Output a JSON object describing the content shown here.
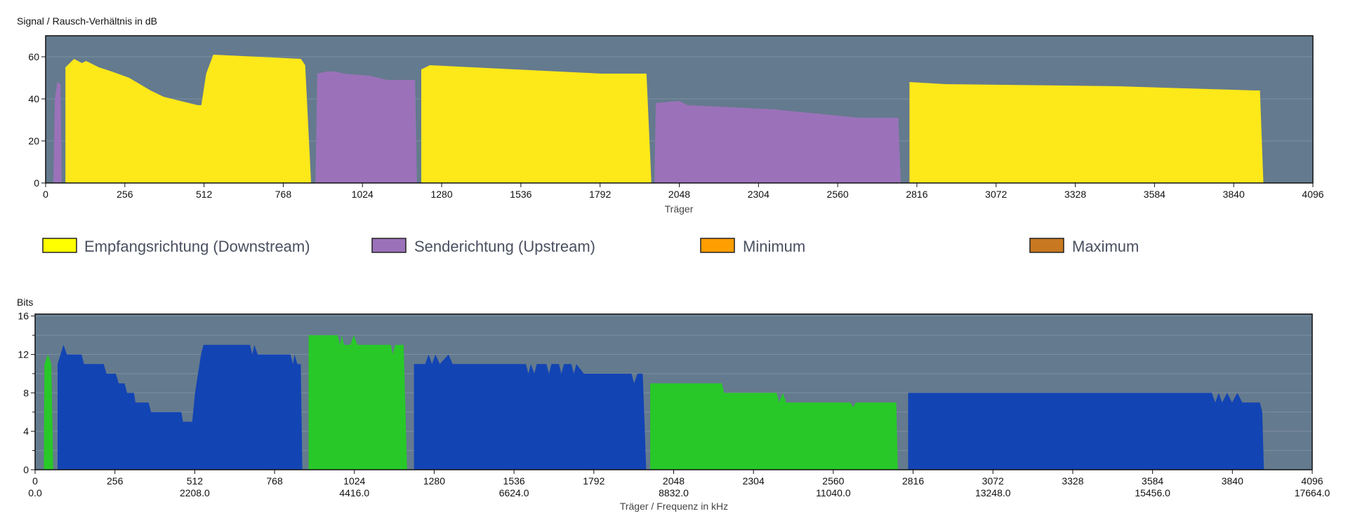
{
  "colors": {
    "plot_background": "#647a8e",
    "gridline": "#7d90a2",
    "downstream_snr": "#fde81a",
    "upstream_snr": "#9b72b9",
    "downstream_bits": "#1244b4",
    "upstream_bits": "#28c828",
    "minimum": "#ff9e00",
    "maximum": "#c87820"
  },
  "legend": {
    "placement": "between charts",
    "items": [
      {
        "label": "Empfangsrichtung (Downstream)",
        "color": "#ffff00"
      },
      {
        "label": "Senderichtung (Upstream)",
        "color": "#9b72b9"
      },
      {
        "label": "Minimum",
        "color": "#ff9e00"
      },
      {
        "label": "Maximum",
        "color": "#c87820"
      }
    ]
  },
  "chart_data": [
    {
      "type": "area",
      "title": "Signal / Rausch-Verhältnis in dB",
      "xlabel": "Träger",
      "ylabel": "",
      "xlim": [
        0,
        4096
      ],
      "ylim": [
        0,
        70
      ],
      "xticks": [
        0,
        256,
        512,
        768,
        1024,
        1280,
        1536,
        1792,
        2048,
        2304,
        2560,
        2816,
        3072,
        3328,
        3584,
        3840,
        4096
      ],
      "yticks": [
        0,
        20,
        40,
        60
      ],
      "grid": true,
      "series": [
        {
          "direction": "downstream",
          "segments": [
            [
              [
                64,
                0
              ],
              [
                64,
                55
              ],
              [
                92,
                59
              ],
              [
                117,
                57
              ],
              [
                131,
                58
              ],
              [
                172,
                55
              ],
              [
                214,
                53
              ],
              [
                270,
                50
              ],
              [
                339,
                44
              ],
              [
                381,
                41
              ],
              [
                436,
                39
              ],
              [
                492,
                37
              ],
              [
                503,
                37
              ],
              [
                519,
                52
              ],
              [
                542,
                61
              ],
              [
                686,
                60
              ],
              [
                825,
                59
              ],
              [
                839,
                56
              ],
              [
                858,
                0
              ]
            ],
            [
              [
                1214,
                0
              ],
              [
                1214,
                54
              ],
              [
                1242,
                56
              ],
              [
                1519,
                54
              ],
              [
                1797,
                52
              ],
              [
                1942,
                52
              ],
              [
                1958,
                0
              ]
            ],
            [
              [
                2792,
                0
              ],
              [
                2792,
                48
              ],
              [
                2908,
                47
              ],
              [
                3464,
                46
              ],
              [
                3908,
                44
              ],
              [
                3925,
                44
              ],
              [
                3936,
                0
              ]
            ]
          ]
        },
        {
          "direction": "upstream",
          "segments": [
            [
              [
                25,
                0
              ],
              [
                30,
                40
              ],
              [
                38,
                48
              ],
              [
                48,
                47
              ],
              [
                52,
                0
              ]
            ],
            [
              [
                872,
                0
              ],
              [
                878,
                52
              ],
              [
                908,
                53
              ],
              [
                936,
                53
              ],
              [
                964,
                52
              ],
              [
                1047,
                51
              ],
              [
                1103,
                49
              ],
              [
                1194,
                49
              ],
              [
                1200,
                0
              ]
            ],
            [
              [
                1968,
                0
              ],
              [
                1972,
                38
              ],
              [
                2047,
                39
              ],
              [
                2075,
                37
              ],
              [
                2353,
                35
              ],
              [
                2492,
                33
              ],
              [
                2631,
                31
              ],
              [
                2756,
                31
              ],
              [
                2764,
                0
              ]
            ]
          ]
        }
      ]
    },
    {
      "type": "area",
      "title": "Bits",
      "xlabel": "Träger / Frequenz in kHz",
      "ylabel": "",
      "xlim": [
        0,
        4096
      ],
      "ylim": [
        0,
        16.2
      ],
      "xticks": [
        0,
        256,
        512,
        768,
        1024,
        1280,
        1536,
        1792,
        2048,
        2304,
        2560,
        2816,
        3072,
        3328,
        3584,
        3840,
        4096
      ],
      "xticks_secondary": [
        "0.0",
        "",
        "2208.0",
        "",
        "4416.0",
        "",
        "6624.0",
        "",
        "8832.0",
        "",
        "11040.0",
        "",
        "13248.0",
        "",
        "15456.0",
        "",
        "17664.0"
      ],
      "yticks": [
        0,
        4,
        8,
        12,
        16
      ],
      "yticks_minor": [
        2,
        6,
        10,
        14
      ],
      "grid": true,
      "series": [
        {
          "direction": "downstream",
          "segments": [
            [
              [
                72,
                0
              ],
              [
                72,
                11
              ],
              [
                91,
                13
              ],
              [
                102,
                12
              ],
              [
                149,
                12
              ],
              [
                157,
                11
              ],
              [
                220,
                11
              ],
              [
                229,
                10
              ],
              [
                259,
                10
              ],
              [
                268,
                9
              ],
              [
                287,
                9
              ],
              [
                295,
                8
              ],
              [
                317,
                8
              ],
              [
                322,
                7
              ],
              [
                364,
                7
              ],
              [
                372,
                6
              ],
              [
                469,
                6
              ],
              [
                474,
                5
              ],
              [
                504,
                5
              ],
              [
                513,
                8
              ],
              [
                532,
                12
              ],
              [
                540,
                13
              ],
              [
                689,
                13
              ],
              [
                697,
                12
              ],
              [
                703,
                13
              ],
              [
                714,
                12
              ],
              [
                819,
                12
              ],
              [
                827,
                11
              ],
              [
                832,
                12
              ],
              [
                841,
                11
              ],
              [
                852,
                11
              ],
              [
                857,
                0
              ]
            ],
            [
              [
                1215,
                0
              ],
              [
                1215,
                11
              ],
              [
                1251,
                11
              ],
              [
                1262,
                12
              ],
              [
                1273,
                11
              ],
              [
                1284,
                12
              ],
              [
                1298,
                11
              ],
              [
                1326,
                12
              ],
              [
                1339,
                11
              ],
              [
                1574,
                11
              ],
              [
                1582,
                10
              ],
              [
                1590,
                11
              ],
              [
                1601,
                10
              ],
              [
                1609,
                11
              ],
              [
                1640,
                11
              ],
              [
                1648,
                10
              ],
              [
                1656,
                11
              ],
              [
                1680,
                11
              ],
              [
                1688,
                10
              ],
              [
                1696,
                11
              ],
              [
                1720,
                11
              ],
              [
                1728,
                10
              ],
              [
                1736,
                11
              ],
              [
                1760,
                10
              ],
              [
                1913,
                10
              ],
              [
                1921,
                9
              ],
              [
                1932,
                10
              ],
              [
                1949,
                10
              ],
              [
                1960,
                0
              ]
            ],
            [
              [
                2800,
                0
              ],
              [
                2800,
                8
              ],
              [
                3774,
                8
              ],
              [
                3785,
                7
              ],
              [
                3796,
                8
              ],
              [
                3807,
                7
              ],
              [
                3823,
                8
              ],
              [
                3839,
                7
              ],
              [
                3856,
                8
              ],
              [
                3872,
                7
              ],
              [
                3928,
                7
              ],
              [
                3936,
                6
              ],
              [
                3941,
                0
              ]
            ]
          ]
        },
        {
          "direction": "upstream",
          "segments": [
            [
              [
                28,
                0
              ],
              [
                30,
                11
              ],
              [
                41,
                12
              ],
              [
                52,
                11
              ],
              [
                58,
                0
              ]
            ],
            [
              [
                877,
                0
              ],
              [
                877,
                14
              ],
              [
                970,
                14
              ],
              [
                978,
                13
              ],
              [
                984,
                14
              ],
              [
                990,
                13
              ],
              [
                1011,
                13
              ],
              [
                1022,
                14
              ],
              [
                1034,
                13
              ],
              [
                1141,
                13
              ],
              [
                1147,
                12
              ],
              [
                1155,
                13
              ],
              [
                1182,
                13
              ],
              [
                1193,
                0
              ]
            ],
            [
              [
                1973,
                0
              ],
              [
                1973,
                9
              ],
              [
                2202,
                9
              ],
              [
                2210,
                8
              ],
              [
                2378,
                8
              ],
              [
                2387,
                7
              ],
              [
                2398,
                8
              ],
              [
                2409,
                7
              ],
              [
                2615,
                7
              ],
              [
                2624,
                6.5
              ],
              [
                2632,
                7
              ],
              [
                2762,
                7
              ],
              [
                2767,
                0
              ]
            ]
          ]
        }
      ]
    }
  ]
}
